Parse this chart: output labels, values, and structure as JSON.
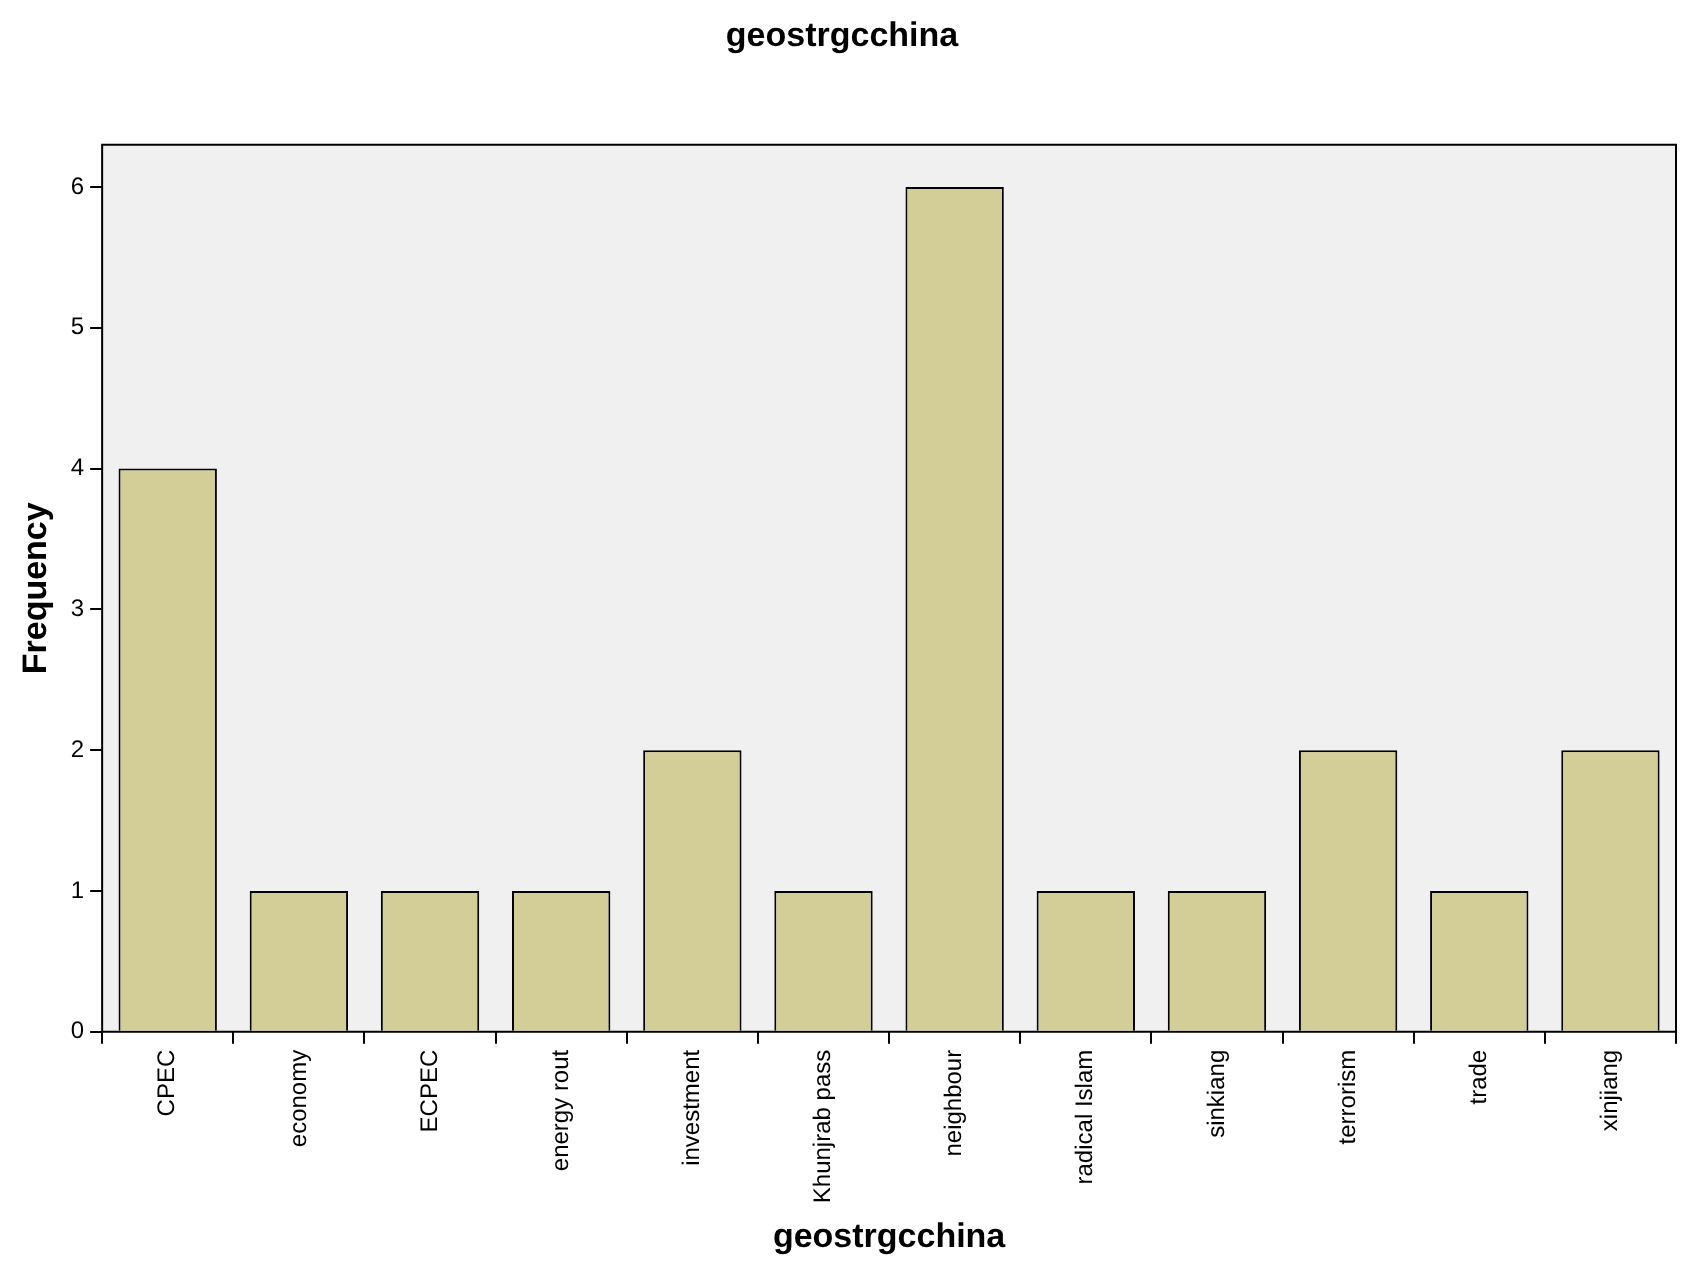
{
  "chart_data": {
    "type": "bar",
    "title": "geostrgcchina",
    "xlabel": "geostrgcchina",
    "ylabel": "Frequency",
    "categories": [
      "CPEC",
      "economy",
      "ECPEC",
      "energy rout",
      "investment",
      "Khunjrab pass",
      "neighbour",
      "radical Islam",
      "sinkiang",
      "terrorism",
      "trade",
      "xinjiang"
    ],
    "values": [
      4,
      1,
      1,
      1,
      2,
      1,
      6,
      1,
      1,
      2,
      1,
      2
    ],
    "color": "#d3ce97",
    "ylim": [
      0,
      6.3
    ],
    "yticks": [
      0,
      1,
      2,
      3,
      4,
      5,
      6
    ],
    "grid": false,
    "legend": false
  }
}
